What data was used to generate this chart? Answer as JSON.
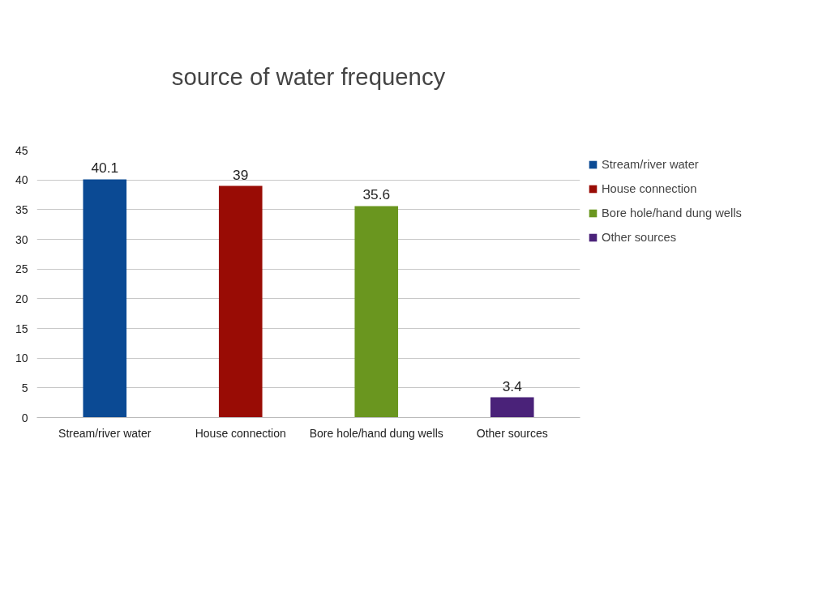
{
  "chart_data": {
    "type": "bar",
    "title": "source of water frequency",
    "categories": [
      "Stream/river water",
      "House connection",
      "Bore hole/hand dung wells",
      "Other sources"
    ],
    "series": [
      {
        "name": "Stream/river water",
        "color": "#0b4a94",
        "values": [
          40.1,
          null,
          null,
          null
        ]
      },
      {
        "name": "House connection",
        "color": "#990c05",
        "values": [
          null,
          39,
          null,
          null
        ]
      },
      {
        "name": "Bore hole/hand dung wells",
        "color": "#6a961f",
        "values": [
          null,
          null,
          35.6,
          null
        ]
      },
      {
        "name": "Other sources",
        "color": "#4a2279",
        "values": [
          null,
          null,
          null,
          3.4
        ]
      }
    ],
    "ylim": [
      0,
      45
    ],
    "yticks": [
      0,
      5,
      10,
      15,
      20,
      25,
      30,
      35,
      40,
      45
    ],
    "grid": "y",
    "legend": "top right",
    "data_labels": true
  }
}
